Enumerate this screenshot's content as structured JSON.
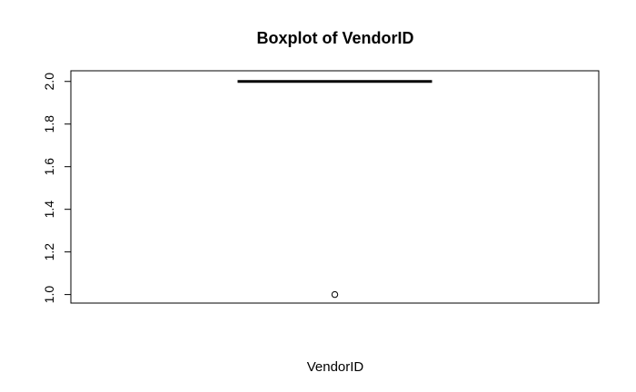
{
  "chart_data": {
    "type": "boxplot",
    "title": "Boxplot of VendorID",
    "xlabel": "VendorID",
    "ylabel": "",
    "ylim": [
      0.96,
      2.05
    ],
    "yticks": [
      "1.0",
      "1.2",
      "1.4",
      "1.6",
      "1.8",
      "2.0"
    ],
    "ytick_values": [
      1.0,
      1.2,
      1.4,
      1.6,
      1.8,
      2.0
    ],
    "grid": false,
    "box": {
      "min": 2.0,
      "q1": 2.0,
      "median": 2.0,
      "q3": 2.0,
      "max": 2.0
    },
    "outliers": [
      1.0
    ],
    "colors": {
      "stroke": "#000000",
      "background": "#ffffff"
    }
  }
}
